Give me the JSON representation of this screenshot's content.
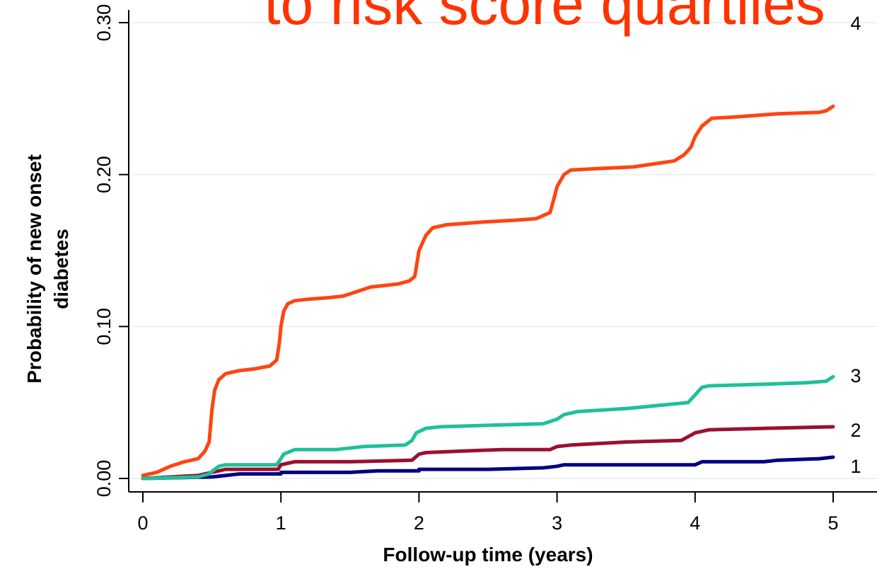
{
  "chart_data": {
    "type": "line",
    "title": "to risk score quartiles",
    "title_color": "#ff3300",
    "xlabel": "Follow-up time (years)",
    "ylabel_line1": "Probability of new onset",
    "ylabel_line2": "diabetes",
    "xlim": [
      0,
      5
    ],
    "ylim": [
      0,
      0.3
    ],
    "x_ticks": [
      0,
      1,
      2,
      3,
      4,
      5
    ],
    "x_tick_labels": [
      "0",
      "1",
      "2",
      "3",
      "4",
      "5"
    ],
    "y_ticks": [
      0,
      0.1,
      0.2,
      0.3
    ],
    "y_tick_labels": [
      "0.00",
      "0.10",
      "0.20",
      "0.30"
    ],
    "grid": "horizontal",
    "series": [
      {
        "name": "1",
        "color": "#000080",
        "points": [
          [
            0,
            0
          ],
          [
            0.5,
            0.001
          ],
          [
            0.7,
            0.003
          ],
          [
            1.0,
            0.003
          ],
          [
            1.0,
            0.004
          ],
          [
            1.5,
            0.004
          ],
          [
            1.7,
            0.005
          ],
          [
            2.0,
            0.005
          ],
          [
            2.0,
            0.006
          ],
          [
            2.5,
            0.006
          ],
          [
            2.9,
            0.007
          ],
          [
            3.0,
            0.008
          ],
          [
            3.05,
            0.009
          ],
          [
            3.5,
            0.009
          ],
          [
            4.0,
            0.009
          ],
          [
            4.05,
            0.011
          ],
          [
            4.5,
            0.011
          ],
          [
            4.6,
            0.012
          ],
          [
            4.9,
            0.013
          ],
          [
            5.0,
            0.014
          ]
        ]
      },
      {
        "name": "2",
        "color": "#9b1030",
        "points": [
          [
            0,
            0
          ],
          [
            0.4,
            0.002
          ],
          [
            0.5,
            0.004
          ],
          [
            0.55,
            0.005
          ],
          [
            0.6,
            0.006
          ],
          [
            0.98,
            0.006
          ],
          [
            1.0,
            0.009
          ],
          [
            1.05,
            0.01
          ],
          [
            1.1,
            0.011
          ],
          [
            1.5,
            0.011
          ],
          [
            1.95,
            0.012
          ],
          [
            2.0,
            0.016
          ],
          [
            2.05,
            0.017
          ],
          [
            2.3,
            0.018
          ],
          [
            2.6,
            0.019
          ],
          [
            2.95,
            0.019
          ],
          [
            3.0,
            0.021
          ],
          [
            3.1,
            0.022
          ],
          [
            3.5,
            0.024
          ],
          [
            3.9,
            0.025
          ],
          [
            4.0,
            0.03
          ],
          [
            4.1,
            0.032
          ],
          [
            4.5,
            0.033
          ],
          [
            5.0,
            0.034
          ]
        ]
      },
      {
        "name": "3",
        "color": "#1fc09a",
        "points": [
          [
            0,
            0
          ],
          [
            0.4,
            0.001
          ],
          [
            0.48,
            0.003
          ],
          [
            0.52,
            0.006
          ],
          [
            0.55,
            0.008
          ],
          [
            0.6,
            0.009
          ],
          [
            0.97,
            0.009
          ],
          [
            1.0,
            0.013
          ],
          [
            1.02,
            0.016
          ],
          [
            1.1,
            0.019
          ],
          [
            1.4,
            0.019
          ],
          [
            1.6,
            0.021
          ],
          [
            1.9,
            0.022
          ],
          [
            1.95,
            0.025
          ],
          [
            1.98,
            0.03
          ],
          [
            2.05,
            0.033
          ],
          [
            2.15,
            0.034
          ],
          [
            2.5,
            0.035
          ],
          [
            2.9,
            0.036
          ],
          [
            3.0,
            0.039
          ],
          [
            3.05,
            0.042
          ],
          [
            3.15,
            0.044
          ],
          [
            3.5,
            0.046
          ],
          [
            3.95,
            0.05
          ],
          [
            4.0,
            0.055
          ],
          [
            4.05,
            0.06
          ],
          [
            4.1,
            0.061
          ],
          [
            4.5,
            0.062
          ],
          [
            4.8,
            0.063
          ],
          [
            4.95,
            0.064
          ],
          [
            5.0,
            0.067
          ]
        ]
      },
      {
        "name": "4",
        "color": "#ff4411",
        "points": [
          [
            0,
            0.002
          ],
          [
            0.1,
            0.004
          ],
          [
            0.2,
            0.008
          ],
          [
            0.3,
            0.011
          ],
          [
            0.4,
            0.013
          ],
          [
            0.45,
            0.018
          ],
          [
            0.48,
            0.024
          ],
          [
            0.5,
            0.045
          ],
          [
            0.52,
            0.058
          ],
          [
            0.55,
            0.065
          ],
          [
            0.6,
            0.069
          ],
          [
            0.7,
            0.071
          ],
          [
            0.8,
            0.072
          ],
          [
            0.92,
            0.074
          ],
          [
            0.97,
            0.078
          ],
          [
            0.99,
            0.09
          ],
          [
            1.0,
            0.1
          ],
          [
            1.02,
            0.11
          ],
          [
            1.05,
            0.115
          ],
          [
            1.1,
            0.117
          ],
          [
            1.2,
            0.118
          ],
          [
            1.35,
            0.119
          ],
          [
            1.45,
            0.12
          ],
          [
            1.55,
            0.123
          ],
          [
            1.65,
            0.126
          ],
          [
            1.75,
            0.127
          ],
          [
            1.85,
            0.128
          ],
          [
            1.93,
            0.13
          ],
          [
            1.97,
            0.133
          ],
          [
            2.0,
            0.15
          ],
          [
            2.05,
            0.16
          ],
          [
            2.1,
            0.165
          ],
          [
            2.2,
            0.167
          ],
          [
            2.35,
            0.168
          ],
          [
            2.5,
            0.169
          ],
          [
            2.7,
            0.17
          ],
          [
            2.85,
            0.171
          ],
          [
            2.95,
            0.175
          ],
          [
            2.98,
            0.185
          ],
          [
            3.0,
            0.192
          ],
          [
            3.05,
            0.2
          ],
          [
            3.1,
            0.203
          ],
          [
            3.3,
            0.204
          ],
          [
            3.55,
            0.205
          ],
          [
            3.7,
            0.207
          ],
          [
            3.85,
            0.209
          ],
          [
            3.92,
            0.213
          ],
          [
            3.97,
            0.218
          ],
          [
            4.0,
            0.225
          ],
          [
            4.05,
            0.232
          ],
          [
            4.12,
            0.237
          ],
          [
            4.3,
            0.238
          ],
          [
            4.6,
            0.24
          ],
          [
            4.9,
            0.241
          ],
          [
            4.95,
            0.242
          ],
          [
            5.0,
            0.245
          ]
        ]
      }
    ]
  }
}
